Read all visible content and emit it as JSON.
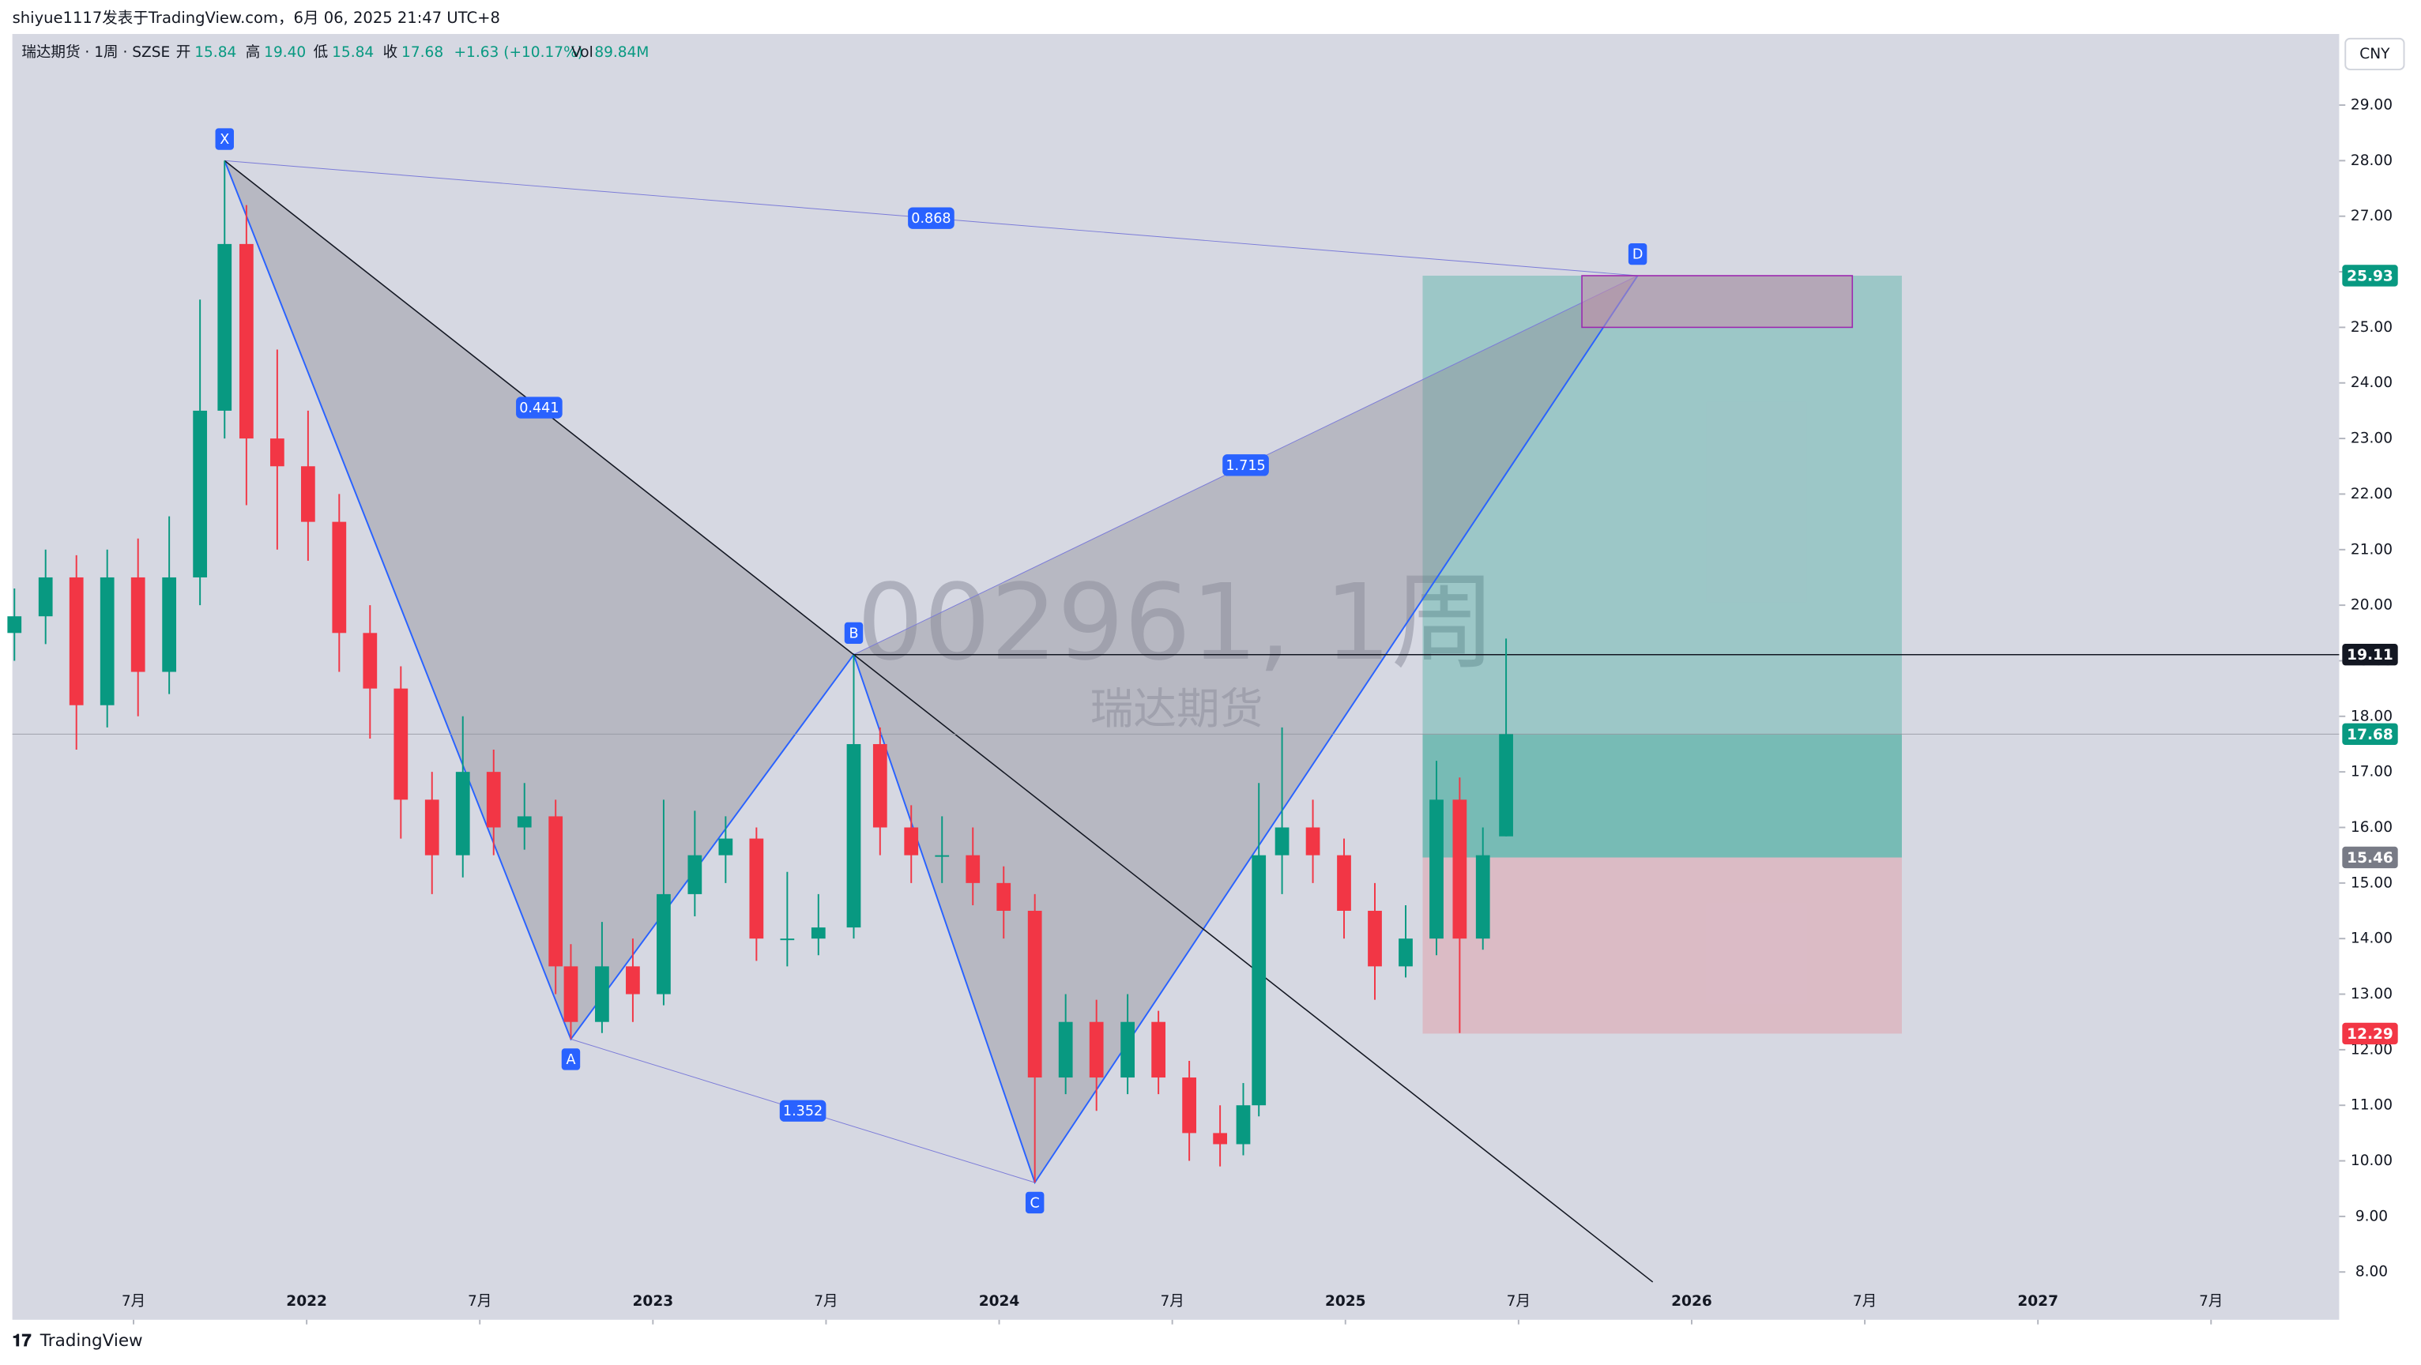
{
  "header": {
    "author_line": "shiyue1117发表于TradingView.com，6月 06, 2025 21:47 UTC+8",
    "symbol": "瑞达期货 · 1周 · SZSE",
    "open_label": "开",
    "open": "15.84",
    "high_label": "高",
    "high": "19.40",
    "low_label": "低",
    "low": "15.84",
    "close_label": "收",
    "close": "17.68",
    "change": "+1.63 (+10.17%)",
    "vol_label": "Vol",
    "vol": "89.84M",
    "currency": "CNY",
    "watermark": "002961, 1周",
    "watermark_name": "瑞达期货",
    "brand": "TradingView"
  },
  "chart_data": {
    "type": "candlestick",
    "up_color": "#089981",
    "down_color": "#f23645",
    "xlim": [
      2021.15,
      2027.87
    ],
    "ylim": [
      7.14,
      30.28
    ],
    "xticks": [
      {
        "value": 2021.5,
        "label": "7月"
      },
      2022,
      {
        "value": 2022.5,
        "label": "7月"
      },
      2023,
      {
        "value": 2023.5,
        "label": "7月"
      },
      2024,
      {
        "value": 2024.5,
        "label": "7月"
      },
      2025,
      {
        "value": 2025.5,
        "label": "7月"
      },
      2026,
      {
        "value": 2026.5,
        "label": "7月"
      },
      2027,
      {
        "value": 2027.5,
        "label": "7月"
      }
    ],
    "yticks": [
      {
        "value": 8,
        "label": "8.00"
      },
      {
        "value": 9,
        "label": "9.00"
      },
      {
        "value": 10,
        "label": "10.00"
      },
      {
        "value": 11,
        "label": "11.00"
      },
      {
        "value": 12,
        "label": "12.00"
      },
      {
        "value": 13,
        "label": "13.00"
      },
      {
        "value": 14,
        "label": "14.00"
      },
      {
        "value": 15,
        "label": "15.00"
      },
      {
        "value": 16,
        "label": "16.00"
      },
      {
        "value": 17,
        "label": "17.00"
      },
      {
        "value": 18,
        "label": "18.00"
      },
      {
        "value": 19,
        "label": "19.00"
      },
      {
        "value": 20,
        "label": "20.00"
      },
      {
        "value": 21,
        "label": "21.00"
      },
      {
        "value": 22,
        "label": "22.00"
      },
      {
        "value": 23,
        "label": "23.00"
      },
      {
        "value": 24,
        "label": "24.00"
      },
      {
        "value": 25,
        "label": "25.00"
      },
      {
        "value": 26,
        "label": "26.00"
      },
      {
        "value": 27,
        "label": "27.00"
      },
      {
        "value": 28,
        "label": "28.00"
      },
      {
        "value": 29,
        "label": "29.00"
      }
    ],
    "candles": [
      {
        "x": 2021.156,
        "o": 19.5,
        "h": 20.3,
        "l": 19.0,
        "c": 19.8
      },
      {
        "x": 2021.246,
        "o": 19.8,
        "h": 21.0,
        "l": 19.3,
        "c": 20.5
      },
      {
        "x": 2021.335,
        "o": 20.5,
        "h": 20.9,
        "l": 17.4,
        "c": 18.2
      },
      {
        "x": 2021.424,
        "o": 18.2,
        "h": 21.0,
        "l": 17.8,
        "c": 20.5
      },
      {
        "x": 2021.513,
        "o": 20.5,
        "h": 21.2,
        "l": 18.0,
        "c": 18.8
      },
      {
        "x": 2021.603,
        "o": 18.8,
        "h": 21.6,
        "l": 18.4,
        "c": 20.5
      },
      {
        "x": 2021.692,
        "o": 20.5,
        "h": 25.5,
        "l": 20.0,
        "c": 23.5
      },
      {
        "x": 2021.763,
        "o": 23.5,
        "h": 28.0,
        "l": 23.0,
        "c": 26.5
      },
      {
        "x": 2021.826,
        "o": 26.5,
        "h": 27.2,
        "l": 21.8,
        "c": 23.0
      },
      {
        "x": 2021.915,
        "o": 23.0,
        "h": 24.6,
        "l": 21.0,
        "c": 22.5
      },
      {
        "x": 2022.004,
        "o": 22.5,
        "h": 23.5,
        "l": 20.8,
        "c": 21.5
      },
      {
        "x": 2022.094,
        "o": 21.5,
        "h": 22.0,
        "l": 18.8,
        "c": 19.5
      },
      {
        "x": 2022.183,
        "o": 19.5,
        "h": 20.0,
        "l": 17.6,
        "c": 18.5
      },
      {
        "x": 2022.272,
        "o": 18.5,
        "h": 18.9,
        "l": 15.8,
        "c": 16.5
      },
      {
        "x": 2022.362,
        "o": 16.5,
        "h": 17.0,
        "l": 14.8,
        "c": 15.5
      },
      {
        "x": 2022.451,
        "o": 15.5,
        "h": 18.0,
        "l": 15.1,
        "c": 17.0
      },
      {
        "x": 2022.54,
        "o": 17.0,
        "h": 17.4,
        "l": 15.5,
        "c": 16.0
      },
      {
        "x": 2022.629,
        "o": 16.0,
        "h": 16.8,
        "l": 15.6,
        "c": 16.2
      },
      {
        "x": 2022.719,
        "o": 16.2,
        "h": 16.5,
        "l": 13.0,
        "c": 13.5
      },
      {
        "x": 2022.763,
        "o": 13.5,
        "h": 13.9,
        "l": 12.19,
        "c": 12.5
      },
      {
        "x": 2022.853,
        "o": 12.5,
        "h": 14.3,
        "l": 12.3,
        "c": 13.5
      },
      {
        "x": 2022.942,
        "o": 13.5,
        "h": 14.0,
        "l": 12.5,
        "c": 13.0
      },
      {
        "x": 2023.031,
        "o": 13.0,
        "h": 16.5,
        "l": 12.8,
        "c": 14.8
      },
      {
        "x": 2023.121,
        "o": 14.8,
        "h": 16.3,
        "l": 14.4,
        "c": 15.5
      },
      {
        "x": 2023.21,
        "o": 15.5,
        "h": 16.2,
        "l": 15.0,
        "c": 15.8
      },
      {
        "x": 2023.299,
        "o": 15.8,
        "h": 16.0,
        "l": 13.6,
        "c": 14.0
      },
      {
        "x": 2023.388,
        "o": 14.0,
        "h": 15.2,
        "l": 13.5,
        "c": 14.0
      },
      {
        "x": 2023.478,
        "o": 14.0,
        "h": 14.8,
        "l": 13.7,
        "c": 14.2
      },
      {
        "x": 2023.58,
        "o": 14.2,
        "h": 19.1,
        "l": 14.0,
        "c": 17.5
      },
      {
        "x": 2023.656,
        "o": 17.5,
        "h": 17.8,
        "l": 15.5,
        "c": 16.0
      },
      {
        "x": 2023.746,
        "o": 16.0,
        "h": 16.4,
        "l": 15.0,
        "c": 15.5
      },
      {
        "x": 2023.835,
        "o": 15.5,
        "h": 16.2,
        "l": 15.0,
        "c": 15.5
      },
      {
        "x": 2023.924,
        "o": 15.5,
        "h": 16.0,
        "l": 14.6,
        "c": 15.0
      },
      {
        "x": 2024.013,
        "o": 15.0,
        "h": 15.3,
        "l": 14.0,
        "c": 14.5
      },
      {
        "x": 2024.103,
        "o": 14.5,
        "h": 14.8,
        "l": 9.61,
        "c": 11.5
      },
      {
        "x": 2024.192,
        "o": 11.5,
        "h": 13.0,
        "l": 11.2,
        "c": 12.5
      },
      {
        "x": 2024.281,
        "o": 12.5,
        "h": 12.9,
        "l": 10.9,
        "c": 11.5
      },
      {
        "x": 2024.371,
        "o": 11.5,
        "h": 13.0,
        "l": 11.2,
        "c": 12.5
      },
      {
        "x": 2024.46,
        "o": 12.5,
        "h": 12.7,
        "l": 11.2,
        "c": 11.5
      },
      {
        "x": 2024.549,
        "o": 11.5,
        "h": 11.8,
        "l": 10.0,
        "c": 10.5
      },
      {
        "x": 2024.638,
        "o": 10.5,
        "h": 11.0,
        "l": 9.9,
        "c": 10.3
      },
      {
        "x": 2024.705,
        "o": 10.3,
        "h": 11.4,
        "l": 10.1,
        "c": 11.0
      },
      {
        "x": 2024.75,
        "o": 11.0,
        "h": 16.8,
        "l": 10.8,
        "c": 15.5
      },
      {
        "x": 2024.817,
        "o": 15.5,
        "h": 17.8,
        "l": 14.8,
        "c": 16.0
      },
      {
        "x": 2024.906,
        "o": 16.0,
        "h": 16.5,
        "l": 15.0,
        "c": 15.5
      },
      {
        "x": 2024.996,
        "o": 15.5,
        "h": 15.8,
        "l": 14.0,
        "c": 14.5
      },
      {
        "x": 2025.085,
        "o": 14.5,
        "h": 15.0,
        "l": 12.9,
        "c": 13.5
      },
      {
        "x": 2025.174,
        "o": 13.5,
        "h": 14.6,
        "l": 13.3,
        "c": 14.0
      },
      {
        "x": 2025.263,
        "o": 14.0,
        "h": 17.2,
        "l": 13.7,
        "c": 16.5
      },
      {
        "x": 2025.33,
        "o": 16.5,
        "h": 16.9,
        "l": 12.3,
        "c": 14.0
      },
      {
        "x": 2025.397,
        "o": 14.0,
        "h": 16.0,
        "l": 13.8,
        "c": 15.5
      },
      {
        "x": 2025.464,
        "o": 15.84,
        "h": 19.4,
        "l": 15.84,
        "c": 17.68
      }
    ],
    "pattern": [
      {
        "label": "X",
        "x": 2021.763,
        "price": 28
      },
      {
        "label": "A",
        "x": 2022.763,
        "price": 12.19
      },
      {
        "label": "B",
        "x": 2023.58,
        "price": 19.11
      },
      {
        "label": "C",
        "x": 2024.103,
        "price": 9.61
      },
      {
        "label": "D",
        "x": 2025.844,
        "price": 25.93
      }
    ],
    "xb_ratio": 0.441,
    "ac_ratio": 1.352,
    "bd_ratio": 1.715,
    "xd_ratio": 0.868,
    "horizontal_line": 19.11,
    "d_zone": {
      "start": 2025.683,
      "end": 2026.464,
      "top": 25.93,
      "bottom": 25
    },
    "position": {
      "start": 2025.223,
      "end": 2026.607,
      "target": 25.93,
      "entry": 15.46,
      "stop": 12.29
    }
  }
}
